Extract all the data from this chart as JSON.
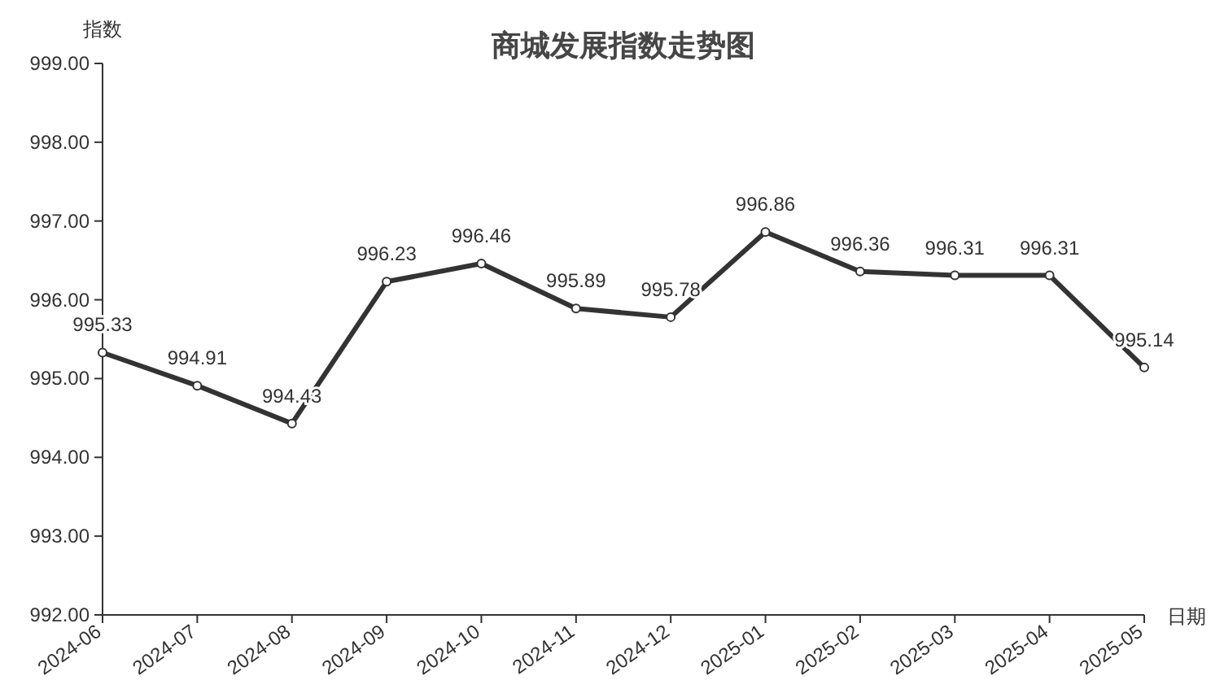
{
  "chart_data": {
    "type": "line",
    "title": "商城发展指数走势图",
    "ylabel": "指数",
    "xlabel": "日期",
    "categories": [
      "2024-06",
      "2024-07",
      "2024-08",
      "2024-09",
      "2024-10",
      "2024-11",
      "2024-12",
      "2025-01",
      "2025-02",
      "2025-03",
      "2025-04",
      "2025-05"
    ],
    "series": [
      {
        "color": "#333333",
        "values": [
          995.33,
          994.91,
          994.43,
          996.23,
          996.46,
          995.89,
          995.78,
          996.86,
          996.36,
          996.31,
          996.31,
          995.14
        ]
      }
    ],
    "ylim": [
      992,
      999
    ],
    "yticks": [
      {
        "value": 992,
        "label": "992.00"
      },
      {
        "value": 993,
        "label": "993.00"
      },
      {
        "value": 994,
        "label": "994.00"
      },
      {
        "value": 995,
        "label": "995.00"
      },
      {
        "value": 996,
        "label": "996.00"
      },
      {
        "value": 997,
        "label": "997.00"
      },
      {
        "value": 998,
        "label": "998.00"
      },
      {
        "value": 999,
        "label": "999.00"
      }
    ],
    "data_labels": true,
    "marker": "circle",
    "line_style": "solid",
    "grid": false
  }
}
